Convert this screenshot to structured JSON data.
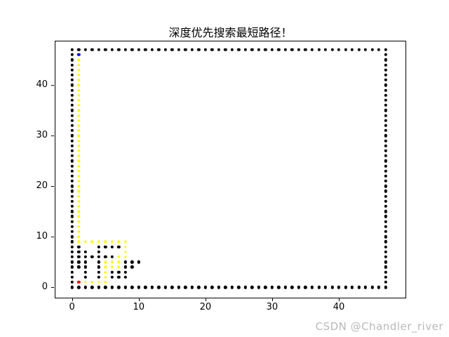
{
  "title": "深度优先搜索最短路径！",
  "watermark": "CSDN @Chandler_river",
  "colors": {
    "wall": "#000000",
    "visited_path": "#ffff00",
    "start": "#ff0000",
    "end": "#0000ff",
    "watermark_text": "#b9b9b9",
    "background": "#ffffff"
  },
  "chart_data": {
    "type": "scatter",
    "title": "深度优先搜索最短路径！",
    "xlabel": "",
    "ylabel": "",
    "xlim": [
      -2.6,
      50.1
    ],
    "ylim": [
      -2.2,
      48.8
    ],
    "x_ticks": [
      0,
      10,
      20,
      30,
      40
    ],
    "y_ticks": [
      0,
      10,
      20,
      30,
      40
    ],
    "grid": false,
    "legend": "none",
    "series": [
      {
        "name": "maze-walls",
        "color": "#000000",
        "marker": "dot",
        "segments": [
          {
            "y": 0,
            "x_from": 0,
            "x_to": 47
          },
          {
            "y": 47,
            "x_from": 0,
            "x_to": 47
          },
          {
            "x": 0,
            "y_from": 1,
            "y_to": 46
          },
          {
            "x": 47,
            "y_from": 1,
            "y_to": 46
          }
        ],
        "points": [
          [
            2,
            2
          ],
          [
            4,
            2
          ],
          [
            6,
            2
          ],
          [
            7,
            2
          ],
          [
            8,
            2
          ],
          [
            2,
            3
          ],
          [
            4,
            3
          ],
          [
            6,
            3
          ],
          [
            7,
            3
          ],
          [
            8,
            3
          ],
          [
            1,
            4
          ],
          [
            2,
            4
          ],
          [
            4,
            4
          ],
          [
            8,
            4
          ],
          [
            9,
            4
          ],
          [
            1,
            5
          ],
          [
            2,
            5
          ],
          [
            4,
            5
          ],
          [
            8,
            5
          ],
          [
            9,
            5
          ],
          [
            10,
            5
          ],
          [
            1,
            6
          ],
          [
            2,
            6
          ],
          [
            3,
            6
          ],
          [
            4,
            6
          ],
          [
            5,
            6
          ],
          [
            6,
            6
          ],
          [
            1,
            7
          ],
          [
            2,
            7
          ],
          [
            4,
            7
          ],
          [
            1,
            8
          ],
          [
            4,
            8
          ],
          [
            5,
            8
          ],
          [
            6,
            8
          ],
          [
            7,
            8
          ]
        ]
      },
      {
        "name": "dfs-visited-path",
        "color": "#ffff00",
        "marker": "dot",
        "segments": [
          {
            "x": 1,
            "y_from": 10,
            "y_to": 45
          }
        ],
        "points": [
          [
            2,
            1
          ],
          [
            3,
            1
          ],
          [
            4,
            1
          ],
          [
            5,
            1
          ],
          [
            5,
            2
          ],
          [
            5,
            3
          ],
          [
            5,
            4
          ],
          [
            6,
            4
          ],
          [
            7,
            4
          ],
          [
            5,
            5
          ],
          [
            6,
            5
          ],
          [
            7,
            5
          ],
          [
            7,
            6
          ],
          [
            8,
            6
          ],
          [
            8,
            7
          ],
          [
            8,
            8
          ],
          [
            1,
            9
          ],
          [
            2,
            9
          ],
          [
            3,
            9
          ],
          [
            4,
            9
          ],
          [
            5,
            9
          ],
          [
            6,
            9
          ],
          [
            7,
            9
          ],
          [
            8,
            9
          ]
        ]
      },
      {
        "name": "start-point",
        "color": "#ff0000",
        "marker": "dot",
        "segments": [],
        "points": [
          [
            1,
            1
          ]
        ]
      },
      {
        "name": "end-point",
        "color": "#0000ff",
        "marker": "dot",
        "segments": [],
        "points": [
          [
            1,
            46
          ]
        ]
      }
    ]
  }
}
